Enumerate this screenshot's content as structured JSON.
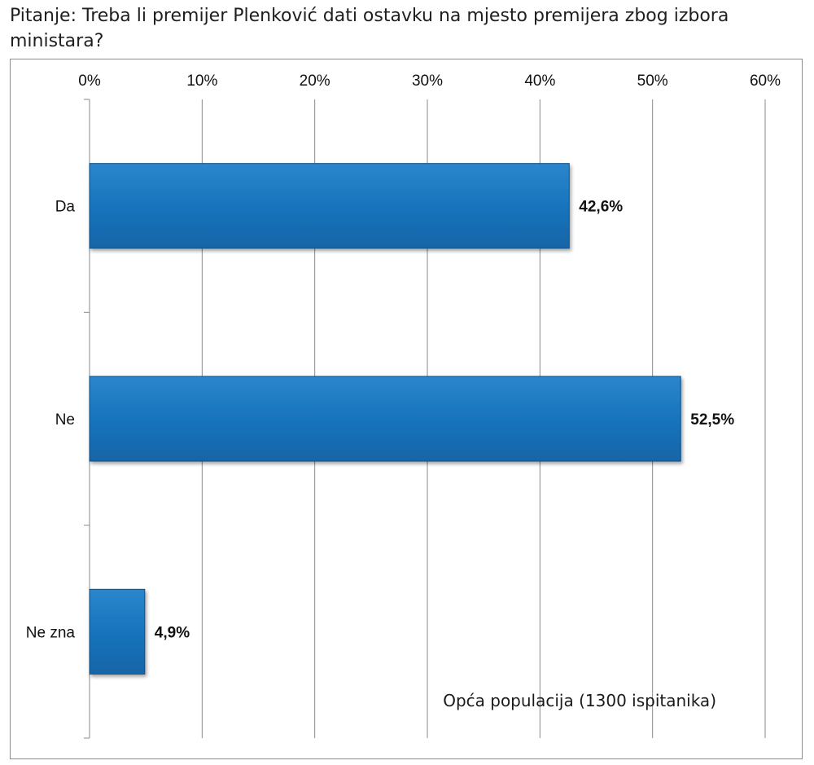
{
  "question": "Pitanje: Treba li premijer Plenković dati ostavku na mjesto premijera zbog izbora ministara?",
  "chart_data": {
    "type": "bar",
    "orientation": "horizontal",
    "categories": [
      "Da",
      "Ne",
      "Ne zna"
    ],
    "values": [
      42.6,
      52.5,
      4.9
    ],
    "value_labels": [
      "42,6%",
      "52,5%",
      "4,9%"
    ],
    "xlim": [
      0,
      60
    ],
    "x_ticks": [
      0,
      10,
      20,
      30,
      40,
      50,
      60
    ],
    "x_tick_labels": [
      "0%",
      "10%",
      "20%",
      "30%",
      "40%",
      "50%",
      "60%"
    ],
    "x_axis_position": "top",
    "grid": true,
    "legend": "none",
    "bar_color": "#1874bd",
    "note": "Opća populacija (1300 ispitanika)"
  }
}
